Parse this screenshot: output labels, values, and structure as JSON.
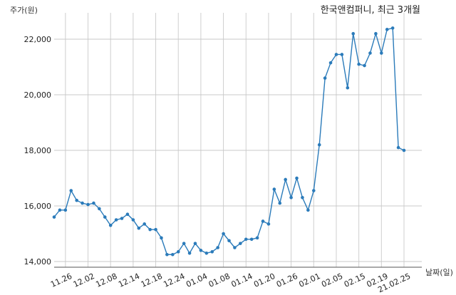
{
  "chart_data": {
    "type": "line",
    "title": "한국앤컴퍼니, 최근 3개월",
    "ylabel": "주가(원)",
    "xlabel": "날짜(일)",
    "ylim": [
      14000,
      22800
    ],
    "yticks": [
      14000,
      16000,
      18000,
      20000,
      22000
    ],
    "ytick_labels": [
      "14,000",
      "16,000",
      "18,000",
      "20,000",
      "22,000"
    ],
    "grid": true,
    "line_color": "#2b7bba",
    "x_ticks": [
      {
        "index": 2,
        "label": "11.26"
      },
      {
        "index": 6,
        "label": "12.02"
      },
      {
        "index": 10,
        "label": "12.08"
      },
      {
        "index": 14,
        "label": "12.14"
      },
      {
        "index": 18,
        "label": "12.18"
      },
      {
        "index": 22,
        "label": "12.24"
      },
      {
        "index": 26,
        "label": "01.04"
      },
      {
        "index": 30,
        "label": "01.08"
      },
      {
        "index": 34,
        "label": "01.14"
      },
      {
        "index": 38,
        "label": "01.20"
      },
      {
        "index": 42,
        "label": "01.26"
      },
      {
        "index": 46,
        "label": "02.01"
      },
      {
        "index": 50,
        "label": "02.05"
      },
      {
        "index": 54,
        "label": "02.15"
      },
      {
        "index": 58,
        "label": "02.19"
      },
      {
        "index": 62,
        "label": "21.02.25"
      }
    ],
    "series": [
      {
        "values": [
          15600,
          15850,
          15850,
          16550,
          16200,
          16100,
          16050,
          16100,
          15900,
          15600,
          15300,
          15500,
          15550,
          15700,
          15500,
          15200,
          15350,
          15150,
          15150,
          14850,
          14250,
          14250,
          14350,
          14650,
          14300,
          14650,
          14400,
          14300,
          14350,
          14500,
          15000,
          14750,
          14500,
          14650,
          14800,
          14800,
          14850,
          15450,
          15350,
          16600,
          16100,
          16950,
          16300,
          17000,
          16300,
          15850,
          16550,
          18200,
          20600,
          21150,
          21450,
          21450,
          20250,
          22200,
          21100,
          21050,
          21500,
          22200,
          21500,
          22350,
          22400,
          18100,
          18000
        ]
      }
    ]
  }
}
